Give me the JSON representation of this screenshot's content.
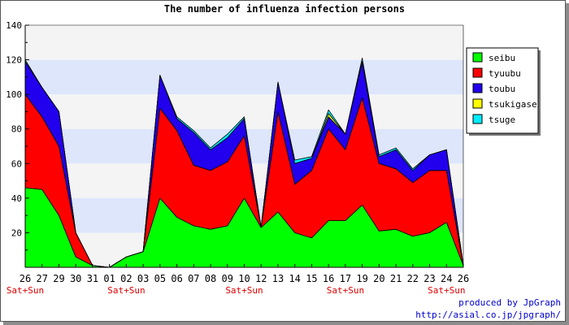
{
  "chart_data": {
    "type": "area",
    "stacked": true,
    "title": "The number of influenza infection persons",
    "xlabel": "",
    "ylabel": "",
    "ylim": [
      0,
      140
    ],
    "yticks": [
      20,
      40,
      60,
      80,
      100,
      120,
      140
    ],
    "y_origin_label": "",
    "grid": true,
    "legend_position": "right",
    "x": [
      "26",
      "27",
      "29",
      "30",
      "31",
      "01",
      "02",
      "03",
      "05",
      "06",
      "07",
      "08",
      "09",
      "10",
      "12",
      "13",
      "14",
      "15",
      "16",
      "17",
      "19",
      "20",
      "21",
      "22",
      "23",
      "24",
      "26"
    ],
    "weekend_marks": [
      {
        "index": 0,
        "label": "Sat+Sun"
      },
      {
        "index": 6,
        "label": "Sat+Sun"
      },
      {
        "index": 13,
        "label": "Sat+Sun"
      },
      {
        "index": 19,
        "label": "Sat+Sun"
      },
      {
        "index": 25,
        "label": "Sat+Sun"
      }
    ],
    "series": [
      {
        "name": "seibu",
        "color": "#00ff00",
        "values": [
          46,
          45,
          30,
          6,
          1,
          0,
          6,
          9,
          40,
          29,
          24,
          22,
          24,
          40,
          23,
          32,
          20,
          17,
          27,
          27,
          36,
          21,
          22,
          18,
          20,
          26,
          1
        ]
      },
      {
        "name": "tyuubu",
        "color": "#ff0000",
        "values": [
          54,
          42,
          40,
          14,
          0,
          0,
          0,
          0,
          52,
          50,
          35,
          34,
          37,
          36,
          0,
          58,
          28,
          39,
          53,
          41,
          62,
          39,
          35,
          31,
          36,
          30,
          0
        ]
      },
      {
        "name": "toubu",
        "color": "#2200ee",
        "values": [
          19,
          17,
          20,
          0,
          0,
          0,
          0,
          0,
          19,
          7,
          19,
          12,
          14,
          10,
          0,
          17,
          12,
          7,
          7,
          9,
          21,
          4,
          11,
          7,
          9,
          12,
          0
        ]
      },
      {
        "name": "tsukigase",
        "color": "#ffff00",
        "values": [
          0,
          0,
          0,
          0,
          0,
          0,
          0,
          0,
          0,
          0,
          0,
          0,
          0,
          0,
          0,
          0,
          0,
          0,
          2,
          0,
          0,
          0,
          0,
          0,
          0,
          0,
          0
        ]
      },
      {
        "name": "tsuge",
        "color": "#00eeff",
        "values": [
          1,
          0,
          0,
          0,
          0,
          0,
          0,
          0,
          0,
          1,
          1,
          1,
          2,
          1,
          0,
          0,
          2,
          1,
          2,
          0,
          2,
          1,
          1,
          1,
          0,
          0,
          0
        ]
      }
    ]
  },
  "credits": {
    "line1": "produced by JpGraph",
    "line2": "http://asial.co.jp/jpgraph/"
  }
}
